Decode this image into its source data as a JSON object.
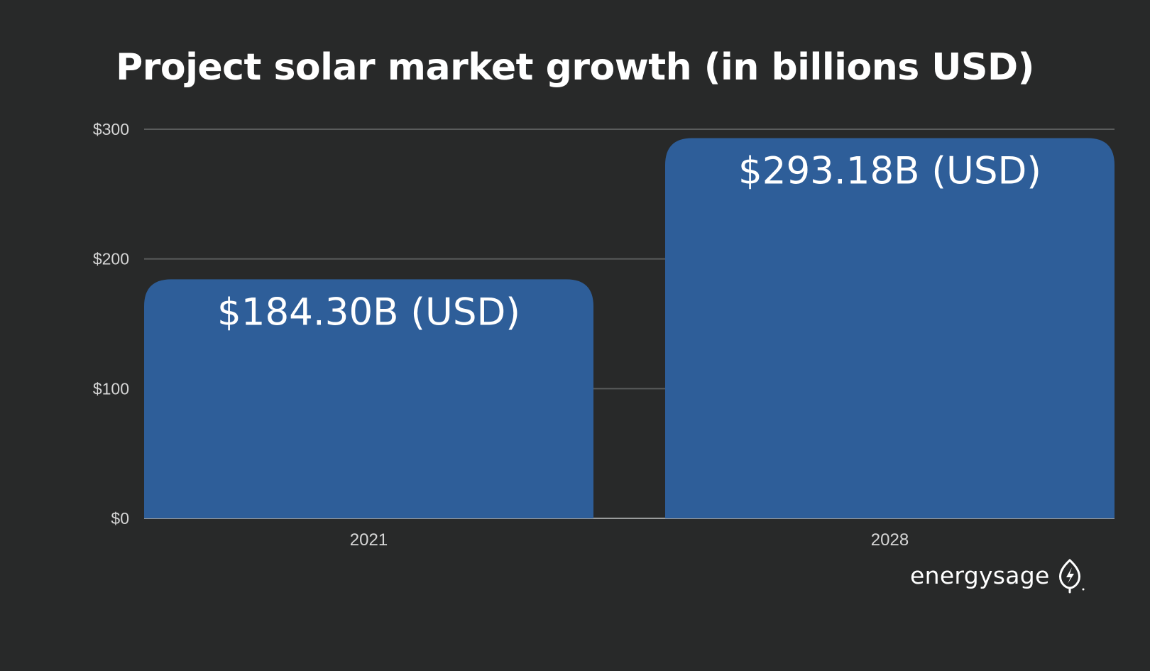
{
  "chart_data": {
    "type": "bar",
    "title": "Project solar market growth (in billions USD)",
    "categories": [
      "2021",
      "2028"
    ],
    "values": [
      184.3,
      293.18
    ],
    "data_labels": [
      "$184.30B (USD)",
      "$293.18B (USD)"
    ],
    "ylim": [
      0,
      300
    ],
    "y_ticks": [
      {
        "value": 0,
        "label": "$0"
      },
      {
        "value": 100,
        "label": "$100"
      },
      {
        "value": 200,
        "label": "$200"
      },
      {
        "value": 300,
        "label": "$300"
      }
    ],
    "grid": true,
    "legend": "none",
    "colors": {
      "bar": "#2e5e99",
      "background": "#282929",
      "grid": "#5a5c5c",
      "text": "#ffffff",
      "axis_text": "#d6d6d6"
    }
  },
  "brand": {
    "name": "energysage",
    "icon": "leaf-bolt-icon"
  }
}
